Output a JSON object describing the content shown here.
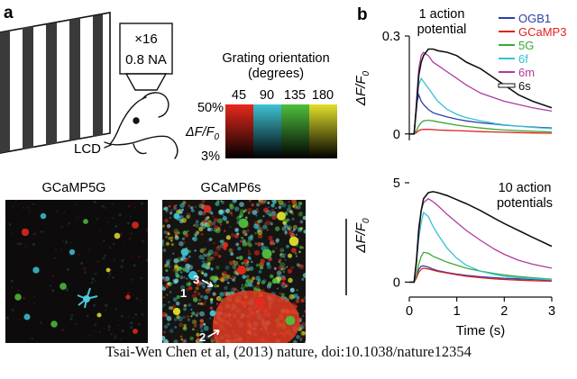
{
  "panel_a": {
    "label": "a",
    "lcd_label": "LCD",
    "objective_line1": "×16",
    "objective_line2": "0.8 NA",
    "colorbar": {
      "title_line1": "Grating orientation",
      "title_line2": "(degrees)",
      "orientations": [
        "45",
        "90",
        "135",
        "180"
      ],
      "top_label": "50%",
      "bottom_label": "3%",
      "axis_label": "ΔF/F",
      "axis_sub": "0",
      "colors": [
        "#e8291c",
        "#3ec3d5",
        "#4fbf3d",
        "#e2df2a"
      ]
    },
    "image_left_title": "GCaMP5G",
    "image_right_title": "GCaMP6s",
    "image_annotations": [
      "1",
      "2",
      "3"
    ]
  },
  "panel_b": {
    "label": "b",
    "legend": [
      {
        "name": "OGB1",
        "color": "#2b3fa6"
      },
      {
        "name": "GCaMP3",
        "color": "#e02020"
      },
      {
        "name": "5G",
        "color": "#3aaa35"
      },
      {
        "name": "6f",
        "color": "#35c0d6"
      },
      {
        "name": "6m",
        "color": "#b03a9e"
      },
      {
        "name": "6s",
        "color": "#111111"
      }
    ]
  },
  "chart_data": [
    {
      "type": "line",
      "title": "1 action potential",
      "ylabel": "ΔF/F0",
      "xlim": [
        0,
        3
      ],
      "ylim": [
        -0.02,
        0.3
      ],
      "yticks": [
        "0",
        "0.3"
      ],
      "x": [
        0,
        0.1,
        0.15,
        0.2,
        0.25,
        0.3,
        0.4,
        0.5,
        0.6,
        0.8,
        1.0,
        1.2,
        1.5,
        1.8,
        2.0,
        2.3,
        2.6,
        3.0
      ],
      "series": [
        {
          "name": "OGB1",
          "color": "#2b3fa6",
          "values": [
            0,
            0,
            0.09,
            0.12,
            0.1,
            0.09,
            0.075,
            0.065,
            0.06,
            0.052,
            0.045,
            0.04,
            0.034,
            0.03,
            0.027,
            0.024,
            0.021,
            0.018
          ]
        },
        {
          "name": "GCaMP3",
          "color": "#e02020",
          "values": [
            0,
            0,
            0.004,
            0.01,
            0.013,
            0.014,
            0.014,
            0.013,
            0.012,
            0.011,
            0.01,
            0.009,
            0.007,
            0.006,
            0.005,
            0.004,
            0.003,
            0.002
          ]
        },
        {
          "name": "5G",
          "color": "#3aaa35",
          "values": [
            0,
            0,
            0.01,
            0.025,
            0.035,
            0.04,
            0.042,
            0.04,
            0.037,
            0.032,
            0.027,
            0.023,
            0.018,
            0.014,
            0.012,
            0.01,
            0.008,
            0.006
          ]
        },
        {
          "name": "6f",
          "color": "#35c0d6",
          "values": [
            0,
            0,
            0.08,
            0.15,
            0.17,
            0.16,
            0.14,
            0.12,
            0.1,
            0.075,
            0.06,
            0.05,
            0.04,
            0.032,
            0.028,
            0.024,
            0.02,
            0.016
          ]
        },
        {
          "name": "6m",
          "color": "#b03a9e",
          "values": [
            0,
            0,
            0.1,
            0.2,
            0.24,
            0.25,
            0.24,
            0.22,
            0.21,
            0.19,
            0.17,
            0.15,
            0.125,
            0.11,
            0.1,
            0.09,
            0.08,
            0.07
          ]
        },
        {
          "name": "6s",
          "color": "#111111",
          "values": [
            0,
            0,
            0.08,
            0.18,
            0.22,
            0.24,
            0.26,
            0.26,
            0.255,
            0.25,
            0.24,
            0.22,
            0.2,
            0.17,
            0.15,
            0.12,
            0.1,
            0.08
          ]
        }
      ]
    },
    {
      "type": "line",
      "title": "10 action potentials",
      "ylabel": "ΔF/F0",
      "xlabel": "Time (s)",
      "xlim": [
        0,
        3
      ],
      "ylim": [
        -0.3,
        5
      ],
      "yticks": [
        "0",
        "5"
      ],
      "xticks": [
        "0",
        "1",
        "2",
        "3"
      ],
      "x": [
        0,
        0.1,
        0.15,
        0.2,
        0.25,
        0.3,
        0.4,
        0.5,
        0.6,
        0.8,
        1.0,
        1.2,
        1.5,
        1.8,
        2.0,
        2.3,
        2.6,
        3.0
      ],
      "series": [
        {
          "name": "OGB1",
          "color": "#2b3fa6",
          "values": [
            0,
            0,
            0.3,
            0.65,
            0.8,
            0.82,
            0.75,
            0.65,
            0.58,
            0.48,
            0.4,
            0.34,
            0.27,
            0.22,
            0.19,
            0.16,
            0.13,
            0.1
          ]
        },
        {
          "name": "GCaMP3",
          "color": "#e02020",
          "values": [
            0,
            0,
            0.2,
            0.5,
            0.65,
            0.7,
            0.66,
            0.6,
            0.54,
            0.45,
            0.37,
            0.3,
            0.22,
            0.16,
            0.13,
            0.1,
            0.07,
            0.05
          ]
        },
        {
          "name": "5G",
          "color": "#3aaa35",
          "values": [
            0,
            0,
            0.35,
            0.9,
            1.3,
            1.5,
            1.45,
            1.3,
            1.2,
            1.0,
            0.85,
            0.7,
            0.55,
            0.43,
            0.36,
            0.28,
            0.22,
            0.15
          ]
        },
        {
          "name": "6f",
          "color": "#35c0d6",
          "values": [
            0,
            0,
            1.0,
            2.2,
            3.0,
            3.5,
            3.3,
            2.8,
            2.4,
            1.7,
            1.2,
            0.85,
            0.55,
            0.38,
            0.3,
            0.22,
            0.17,
            0.12
          ]
        },
        {
          "name": "6m",
          "color": "#b03a9e",
          "values": [
            0,
            0,
            1.2,
            2.8,
            3.6,
            4.0,
            4.2,
            4.05,
            3.85,
            3.4,
            3.0,
            2.6,
            2.1,
            1.65,
            1.4,
            1.1,
            0.9,
            0.7
          ]
        },
        {
          "name": "6s",
          "color": "#111111",
          "values": [
            0,
            0,
            1.0,
            2.6,
            3.6,
            4.2,
            4.5,
            4.55,
            4.5,
            4.35,
            4.15,
            3.95,
            3.6,
            3.2,
            2.95,
            2.6,
            2.25,
            1.8
          ]
        }
      ]
    }
  ],
  "caption": "Tsai-Wen Chen et al, (2013) nature, doi:10.1038/nature12354"
}
